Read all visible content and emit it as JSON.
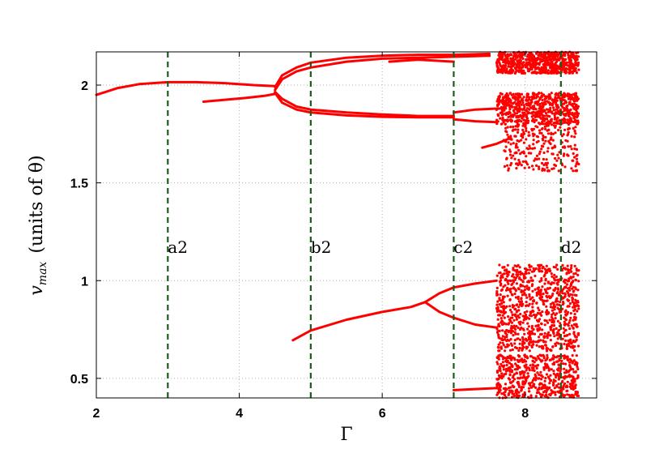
{
  "chart_data": {
    "type": "scatter",
    "title": "",
    "xlabel": "Γ",
    "ylabel": "v_max  (units of θ)",
    "ylabel_main": "v",
    "ylabel_sub": "max",
    "ylabel_rest": "(units of θ)",
    "xlim": [
      2,
      9
    ],
    "ylim": [
      0.4,
      2.17
    ],
    "grid": true,
    "xticks": [
      2,
      4,
      6,
      8
    ],
    "yticks": [
      0.5,
      1,
      1.5,
      2
    ],
    "xtick_labels": [
      "2",
      "4",
      "6",
      "8"
    ],
    "ytick_labels": [
      "0.5",
      "1",
      "1.5",
      "2"
    ],
    "marker_color": "#ff0000",
    "vline_color": "#1a5c1a",
    "vlines": [
      {
        "x": 3,
        "label": "a2"
      },
      {
        "x": 5,
        "label": "b2"
      },
      {
        "x": 7,
        "label": "c2"
      },
      {
        "x": 8.5,
        "label": "d2"
      }
    ],
    "series": [
      {
        "points": [
          [
            2.0,
            1.95
          ],
          [
            2.3,
            1.985
          ],
          [
            2.6,
            2.005
          ],
          [
            3.0,
            2.015
          ],
          [
            3.4,
            2.015
          ],
          [
            3.8,
            2.01
          ],
          [
            4.2,
            2.0
          ],
          [
            4.5,
            1.995
          ]
        ]
      },
      {
        "points": [
          [
            3.5,
            1.915
          ],
          [
            3.8,
            1.925
          ],
          [
            4.1,
            1.935
          ],
          [
            4.35,
            1.945
          ],
          [
            4.5,
            1.955
          ]
        ]
      },
      {
        "points": [
          [
            4.5,
            1.99
          ],
          [
            4.6,
            2.05
          ],
          [
            4.8,
            2.09
          ],
          [
            5.0,
            2.115
          ],
          [
            5.5,
            2.14
          ],
          [
            6.0,
            2.15
          ],
          [
            6.5,
            2.155
          ],
          [
            7.0,
            2.155
          ],
          [
            7.5,
            2.16
          ]
        ]
      },
      {
        "points": [
          [
            4.5,
            1.96
          ],
          [
            4.6,
            1.91
          ],
          [
            4.8,
            1.875
          ],
          [
            5.0,
            1.86
          ],
          [
            5.5,
            1.845
          ],
          [
            6.0,
            1.838
          ],
          [
            6.5,
            1.835
          ],
          [
            7.0,
            1.835
          ]
        ]
      },
      {
        "points": [
          [
            4.5,
            1.975
          ],
          [
            4.6,
            2.03
          ],
          [
            4.8,
            2.07
          ],
          [
            5.0,
            2.09
          ],
          [
            5.5,
            2.12
          ],
          [
            6.0,
            2.135
          ],
          [
            6.5,
            2.14
          ],
          [
            7.0,
            2.145
          ],
          [
            7.5,
            2.15
          ]
        ]
      },
      {
        "points": [
          [
            4.5,
            1.965
          ],
          [
            4.6,
            1.93
          ],
          [
            4.8,
            1.89
          ],
          [
            5.0,
            1.875
          ],
          [
            5.5,
            1.86
          ],
          [
            6.0,
            1.85
          ],
          [
            6.5,
            1.842
          ],
          [
            7.0,
            1.842
          ]
        ]
      },
      {
        "points": [
          [
            4.75,
            0.695
          ],
          [
            5.0,
            0.745
          ],
          [
            5.5,
            0.8
          ],
          [
            6.0,
            0.84
          ],
          [
            6.4,
            0.865
          ],
          [
            6.6,
            0.89
          ]
        ]
      },
      {
        "points": [
          [
            6.6,
            0.89
          ],
          [
            6.8,
            0.935
          ],
          [
            7.0,
            0.965
          ],
          [
            7.3,
            0.985
          ],
          [
            7.6,
            1.0
          ]
        ]
      },
      {
        "points": [
          [
            6.6,
            0.89
          ],
          [
            6.8,
            0.84
          ],
          [
            7.0,
            0.81
          ],
          [
            7.3,
            0.775
          ],
          [
            7.6,
            0.76
          ]
        ]
      },
      {
        "points": [
          [
            7.0,
            0.44
          ],
          [
            7.3,
            0.445
          ],
          [
            7.6,
            0.45
          ]
        ]
      },
      {
        "points": [
          [
            7.0,
            1.825
          ],
          [
            7.3,
            1.815
          ],
          [
            7.6,
            1.81
          ]
        ]
      },
      {
        "points": [
          [
            7.0,
            1.86
          ],
          [
            7.3,
            1.875
          ],
          [
            7.6,
            1.88
          ]
        ]
      },
      {
        "points": [
          [
            7.4,
            1.68
          ],
          [
            7.6,
            1.7
          ],
          [
            7.8,
            1.73
          ]
        ]
      },
      {
        "points": [
          [
            6.1,
            2.12
          ],
          [
            6.5,
            2.13
          ],
          [
            7.0,
            2.12
          ]
        ]
      }
    ],
    "clouds": [
      {
        "x": [
          7.6,
          8.75
        ],
        "y": [
          2.06,
          2.17
        ],
        "n": 700
      },
      {
        "x": [
          7.6,
          8.75
        ],
        "y": [
          1.8,
          1.96
        ],
        "n": 650
      },
      {
        "x": [
          7.7,
          8.75
        ],
        "y": [
          1.56,
          1.8
        ],
        "n": 260
      },
      {
        "x": [
          7.6,
          8.75
        ],
        "y": [
          0.64,
          1.08
        ],
        "n": 900
      },
      {
        "x": [
          7.6,
          8.75
        ],
        "y": [
          0.4,
          0.62
        ],
        "n": 560
      }
    ]
  }
}
